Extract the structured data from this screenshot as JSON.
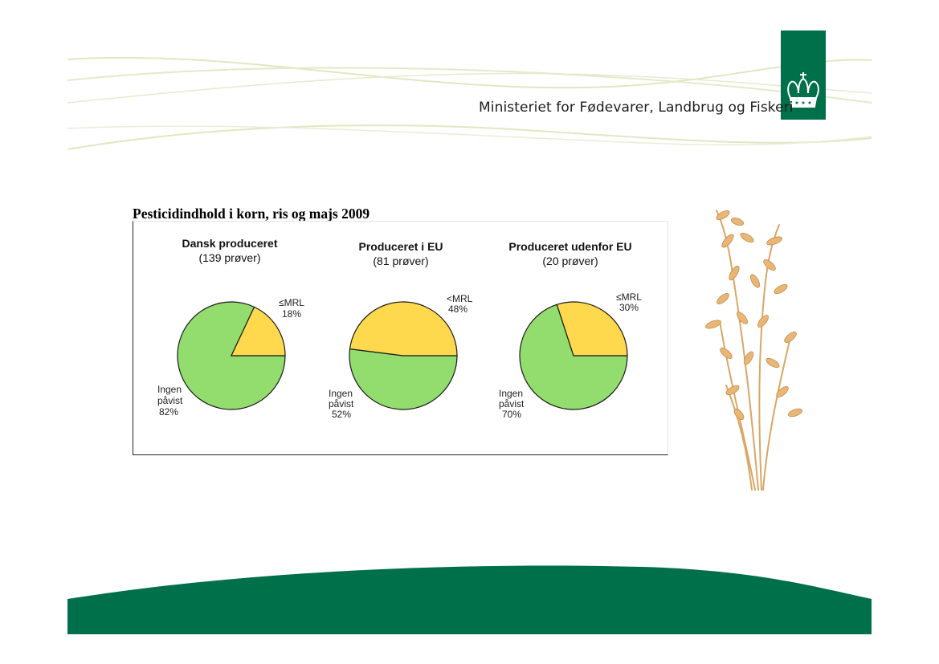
{
  "header": {
    "ministry_name": "Ministeriet for Fødevarer, Landbrug og Fiskeri",
    "logo": "crown-icon",
    "brand_color": "#00704a"
  },
  "decor": {
    "plant_image": "oat-stalk",
    "wave_color": "#dfe8c2"
  },
  "chart_data": {
    "type": "pie",
    "title": "Pesticidindhold i korn, ris og majs 2009",
    "colors": {
      "detected": "#fed84d",
      "none": "#92dd6e",
      "edge": "#1a1a1a"
    },
    "pies": [
      {
        "title": "Dansk produceret",
        "subtitle": "(139 prøver)",
        "slices": [
          {
            "label": "≤MRL",
            "value": 18,
            "text": "18%",
            "color": "#fed84d"
          },
          {
            "label": "Ingen påvist",
            "value": 82,
            "text": "82%",
            "color": "#92dd6e"
          }
        ]
      },
      {
        "title": "Produceret i EU",
        "subtitle": "(81 prøver)",
        "slices": [
          {
            "label": "<MRL",
            "value": 48,
            "text": "48%",
            "color": "#fed84d"
          },
          {
            "label": "Ingen påvist",
            "value": 52,
            "text": "52%",
            "color": "#92dd6e"
          }
        ]
      },
      {
        "title": "Produceret udenfor EU",
        "subtitle": "(20 prøver)",
        "slices": [
          {
            "label": "≤MRL",
            "value": 30,
            "text": "30%",
            "color": "#fed84d"
          },
          {
            "label": "Ingen påvist",
            "value": 70,
            "text": "70%",
            "color": "#92dd6e"
          }
        ]
      }
    ]
  }
}
